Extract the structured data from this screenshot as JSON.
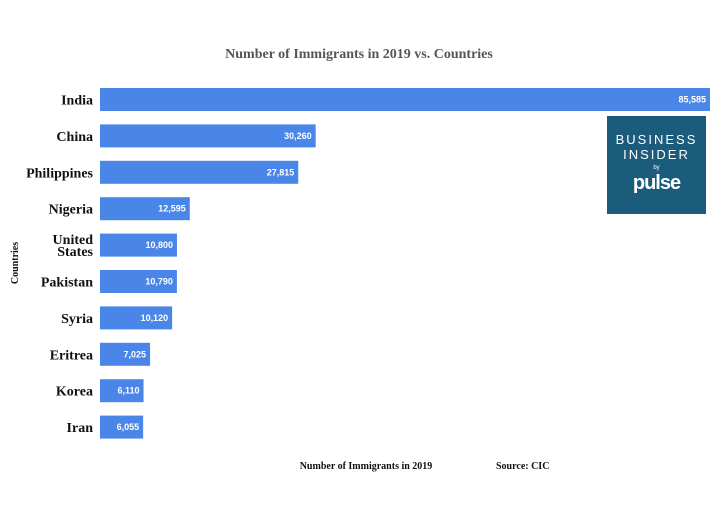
{
  "chart_data": {
    "type": "bar",
    "orientation": "horizontal",
    "title": "Number of Immigrants in 2019 vs. Countries",
    "xlabel": "Number of Immigrants in 2019",
    "ylabel": "Countries",
    "source": "Source: CIC",
    "categories": [
      "India",
      "China",
      "Philippines",
      "Nigeria",
      "United States",
      "Pakistan",
      "Syria",
      "Eritrea",
      "Korea",
      "Iran"
    ],
    "category_lines": [
      [
        "India"
      ],
      [
        "China"
      ],
      [
        "Philippines"
      ],
      [
        "Nigeria"
      ],
      [
        "United",
        "States"
      ],
      [
        "Pakistan"
      ],
      [
        "Syria"
      ],
      [
        "Eritrea"
      ],
      [
        "Korea"
      ],
      [
        "Iran"
      ]
    ],
    "values": [
      85585,
      30260,
      27815,
      12595,
      10800,
      10790,
      10120,
      7025,
      6110,
      6055
    ],
    "value_labels": [
      "85,585",
      "30,260",
      "27,815",
      "12,595",
      "10,800",
      "10,790",
      "10,120",
      "7,025",
      "6,110",
      "6,055"
    ],
    "xlim": [
      0,
      85585
    ],
    "grid": false,
    "bar_color": "#4a86e8"
  },
  "logo": {
    "line1": "BUSINESS",
    "line2": "INSIDER",
    "by": "by",
    "brand": "pulse",
    "bg_color": "#1b5b7c"
  }
}
